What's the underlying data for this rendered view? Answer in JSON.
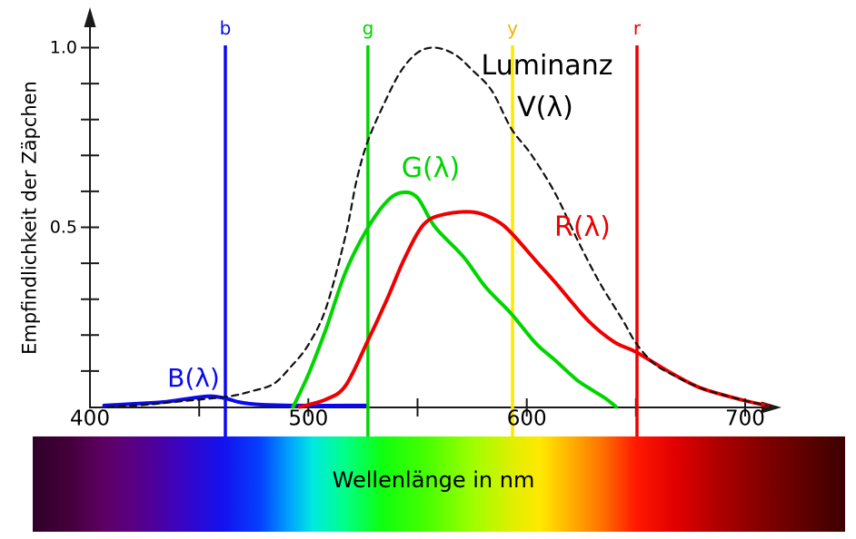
{
  "figure": {
    "y_axis": {
      "title": "Empfindlichkeit der Zäpchen",
      "tick_labels": [
        "1.0",
        "0.5"
      ],
      "tick_values_labeled": [
        1.0,
        0.5
      ],
      "minor_tick_values": [
        0.1,
        0.2,
        0.3,
        0.4,
        0.5,
        0.6,
        0.7,
        0.8,
        0.9,
        1.0
      ]
    },
    "x_axis": {
      "labeled_ticks": [
        {
          "label": "400",
          "nm": 400
        },
        {
          "label": "500",
          "nm": 500
        },
        {
          "label": "600",
          "nm": 600
        },
        {
          "label": "700",
          "nm": 700
        }
      ],
      "minor_tick_nm": [
        450,
        500,
        550,
        600,
        650,
        700
      ]
    },
    "primary_lines": [
      {
        "id": "b",
        "label": "b",
        "nm": 462.0,
        "color": "#0a0af0",
        "label_color": "#0a0af0"
      },
      {
        "id": "g",
        "label": "g",
        "nm": 527.3,
        "color": "#00d500",
        "label_color": "#00d500"
      },
      {
        "id": "y",
        "label": "y",
        "nm": 593.5,
        "color": "#ffe800",
        "label_color": "#f3b300"
      },
      {
        "id": "r",
        "label": "r",
        "nm": 650.5,
        "color": "#ee0000",
        "label_color": "#ee0000"
      }
    ],
    "annotations": [
      {
        "id": "luminanz",
        "text": "Luminanz",
        "color": "#000000"
      },
      {
        "id": "v-lambda",
        "text": "V(λ)",
        "color": "#000000"
      },
      {
        "id": "g-lambda",
        "text": "G(λ)",
        "color": "#00d500"
      },
      {
        "id": "r-lambda",
        "text": "R(λ)",
        "color": "#ee0000"
      },
      {
        "id": "b-lambda",
        "text": "B(λ)",
        "color": "#0a0af0"
      }
    ],
    "spectrum_bar": {
      "label": "Wellenlänge in nm",
      "gradient": [
        {
          "pct": 0,
          "color": "#2e0028"
        },
        {
          "pct": 4.5,
          "color": "#44003a"
        },
        {
          "pct": 8.5,
          "color": "#5c0060"
        },
        {
          "pct": 12,
          "color": "#5b0080"
        },
        {
          "pct": 15,
          "color": "#4d009c"
        },
        {
          "pct": 18.5,
          "color": "#3805c5"
        },
        {
          "pct": 23.5,
          "color": "#1212ef"
        },
        {
          "pct": 28,
          "color": "#0540ff"
        },
        {
          "pct": 31.5,
          "color": "#00a0ff"
        },
        {
          "pct": 34.5,
          "color": "#00eadf"
        },
        {
          "pct": 38.5,
          "color": "#00ff85"
        },
        {
          "pct": 43,
          "color": "#0fff0f"
        },
        {
          "pct": 48.5,
          "color": "#47ff00"
        },
        {
          "pct": 54,
          "color": "#9cff00"
        },
        {
          "pct": 59.5,
          "color": "#e4ee00"
        },
        {
          "pct": 62.5,
          "color": "#ffe900"
        },
        {
          "pct": 66,
          "color": "#ffb400"
        },
        {
          "pct": 70,
          "color": "#ff7300"
        },
        {
          "pct": 74.3,
          "color": "#ff1800"
        },
        {
          "pct": 79,
          "color": "#e20000"
        },
        {
          "pct": 84.5,
          "color": "#ae0000"
        },
        {
          "pct": 91,
          "color": "#7a0000"
        },
        {
          "pct": 96.5,
          "color": "#540000"
        },
        {
          "pct": 100,
          "color": "#3c0000"
        }
      ]
    }
  },
  "chart_data": {
    "type": "line",
    "title": "",
    "xlabel": "Wellenlänge in nm",
    "ylabel": "Empfindlichkeit der Zäpchen",
    "xlim": [
      400,
      715
    ],
    "ylim": [
      0,
      1.05
    ],
    "grid": false,
    "series": [
      {
        "name": "B(λ)",
        "color": "#0a0af0",
        "dashed": false,
        "width": 4,
        "points": [
          [
            406.5,
            0.004
          ],
          [
            421,
            0.009
          ],
          [
            434,
            0.014
          ],
          [
            446,
            0.024
          ],
          [
            455,
            0.03
          ],
          [
            462,
            0.024
          ],
          [
            468,
            0.014
          ],
          [
            473,
            0.009
          ],
          [
            480,
            0.006
          ],
          [
            496,
            0.004
          ],
          [
            527,
            0.004
          ]
        ]
      },
      {
        "name": "G(λ)",
        "color": "#00d500",
        "dashed": false,
        "width": 4,
        "points": [
          [
            493,
            0.0
          ],
          [
            500,
            0.09
          ],
          [
            508,
            0.216
          ],
          [
            517,
            0.375
          ],
          [
            527,
            0.496
          ],
          [
            536,
            0.572
          ],
          [
            543,
            0.597
          ],
          [
            550,
            0.582
          ],
          [
            558,
            0.501
          ],
          [
            571,
            0.418
          ],
          [
            581,
            0.335
          ],
          [
            593,
            0.259
          ],
          [
            604,
            0.178
          ],
          [
            613,
            0.13
          ],
          [
            623,
            0.075
          ],
          [
            630,
            0.047
          ],
          [
            636,
            0.024
          ],
          [
            641,
            0.0
          ]
        ]
      },
      {
        "name": "R(λ)",
        "color": "#ee0000",
        "dashed": false,
        "width": 4,
        "points": [
          [
            496,
            0.0
          ],
          [
            508,
            0.021
          ],
          [
            517,
            0.059
          ],
          [
            527,
            0.181
          ],
          [
            536,
            0.299
          ],
          [
            544,
            0.413
          ],
          [
            553,
            0.509
          ],
          [
            563,
            0.537
          ],
          [
            576,
            0.542
          ],
          [
            586,
            0.519
          ],
          [
            593,
            0.484
          ],
          [
            604,
            0.408
          ],
          [
            613,
            0.347
          ],
          [
            628,
            0.241
          ],
          [
            640,
            0.181
          ],
          [
            650,
            0.153
          ],
          [
            666,
            0.095
          ],
          [
            680,
            0.052
          ],
          [
            699,
            0.019
          ],
          [
            710,
            0.004
          ]
        ]
      },
      {
        "name": "Luminanz V(λ)",
        "color": "#111111",
        "dashed": true,
        "width": 2.2,
        "points": [
          [
            408,
            0.0
          ],
          [
            425,
            0.006
          ],
          [
            442,
            0.016
          ],
          [
            463,
            0.029
          ],
          [
            474,
            0.044
          ],
          [
            484,
            0.064
          ],
          [
            492,
            0.112
          ],
          [
            500,
            0.173
          ],
          [
            508,
            0.274
          ],
          [
            517,
            0.476
          ],
          [
            522,
            0.628
          ],
          [
            527,
            0.736
          ],
          [
            534,
            0.835
          ],
          [
            542,
            0.931
          ],
          [
            550,
            0.986
          ],
          [
            558,
            1.0
          ],
          [
            567,
            0.981
          ],
          [
            575,
            0.938
          ],
          [
            584,
            0.88
          ],
          [
            593,
            0.774
          ],
          [
            602,
            0.703
          ],
          [
            613,
            0.595
          ],
          [
            623,
            0.468
          ],
          [
            633,
            0.35
          ],
          [
            644,
            0.241
          ],
          [
            650,
            0.178
          ],
          [
            658,
            0.122
          ],
          [
            666,
            0.092
          ],
          [
            680,
            0.052
          ],
          [
            699,
            0.019
          ],
          [
            710,
            0.004
          ]
        ]
      }
    ]
  }
}
